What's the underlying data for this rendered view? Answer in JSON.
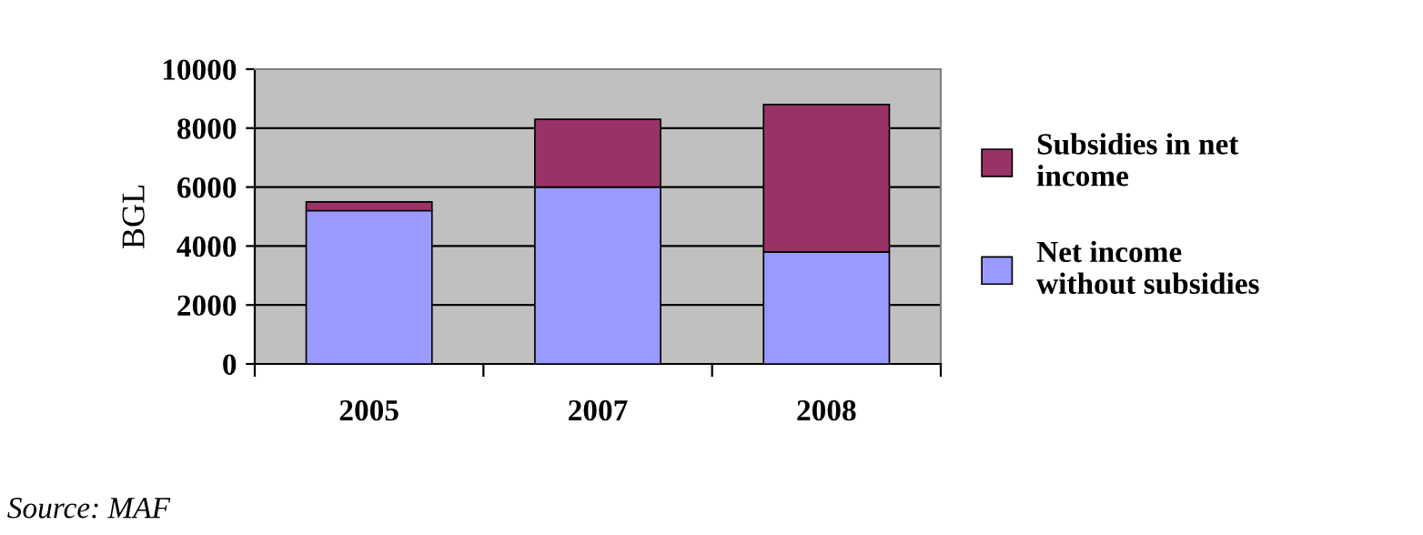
{
  "chart_data": {
    "type": "bar",
    "stacked": true,
    "ylabel": "BGL",
    "categories": [
      "2005",
      "2007",
      "2008"
    ],
    "series": [
      {
        "name": "Net income without subsidies",
        "color": "#9999ff",
        "values": [
          5200,
          6000,
          3800
        ]
      },
      {
        "name": "Subsidies in net income",
        "color": "#993366",
        "values": [
          300,
          2300,
          5000
        ]
      }
    ],
    "ylim": [
      0,
      10000
    ],
    "yticks": [
      0,
      2000,
      4000,
      6000,
      8000,
      10000
    ],
    "grid": "y",
    "legend": "right",
    "annotations": [
      "Source: MAF"
    ]
  }
}
